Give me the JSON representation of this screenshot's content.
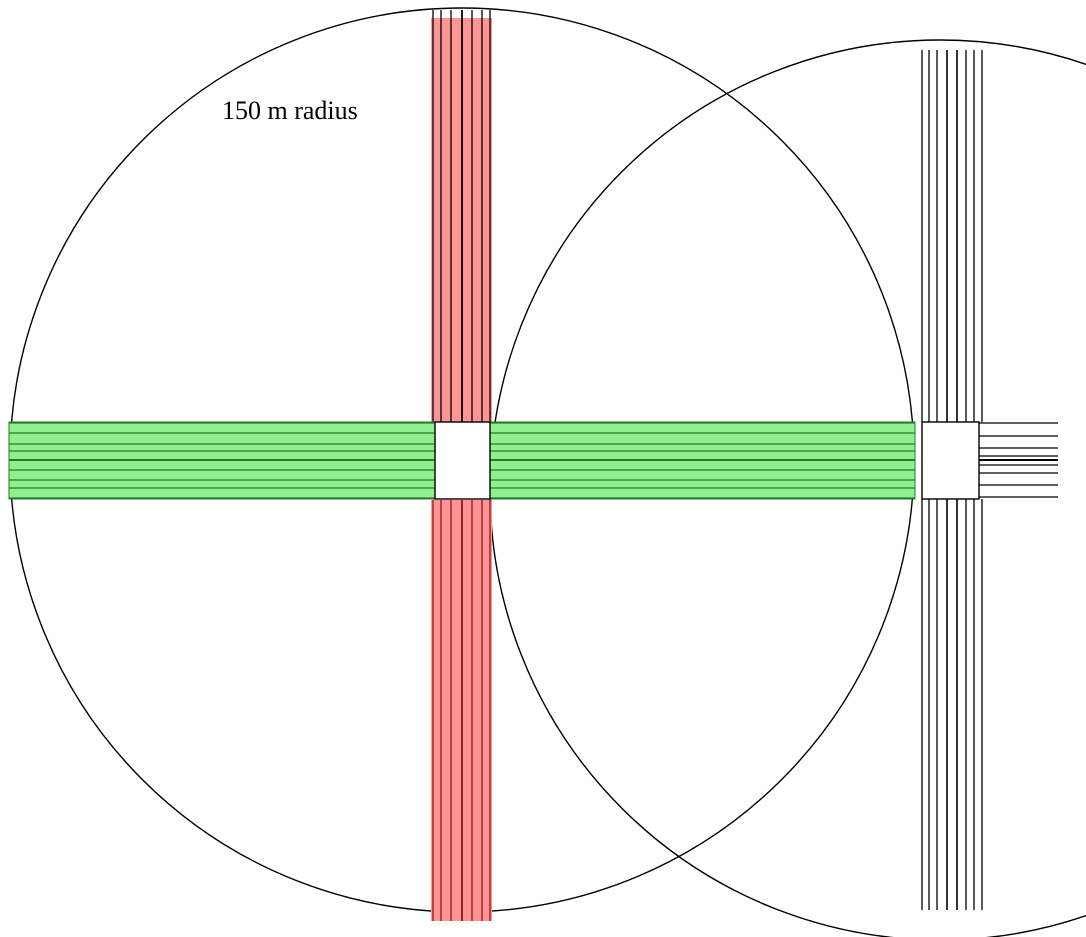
{
  "annotation": {
    "radius_label": "150 m radius"
  },
  "colors": {
    "background": "#ffffff",
    "line": "#000000",
    "vertical_band_fill": "#ff9494",
    "vertical_band_stroke": "#8b1a1a",
    "horizontal_band_fill": "#8ef08e",
    "horizontal_band_stroke": "#2a7a2a",
    "intersection_fill": "#ffffff"
  },
  "scene": {
    "circle_count": 2,
    "intersection_count": 2,
    "lanes_per_road": 6,
    "highlighted_roads": [
      "vertical-road-left",
      "horizontal-road-left"
    ],
    "unhighlighted_roads": [
      "vertical-road-right",
      "horizontal-road-right"
    ]
  }
}
